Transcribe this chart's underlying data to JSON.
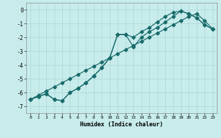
{
  "xlabel": "Humidex (Indice chaleur)",
  "ylabel": "",
  "background_color": "#c8ecec",
  "grid_color": "#b0d8d8",
  "line_color": "#1a6b6b",
  "xlim": [
    -0.5,
    23.5
  ],
  "ylim": [
    -7.5,
    0.5
  ],
  "xticks": [
    0,
    1,
    2,
    3,
    4,
    5,
    6,
    7,
    8,
    9,
    10,
    11,
    12,
    13,
    14,
    15,
    16,
    17,
    18,
    19,
    20,
    21,
    22,
    23
  ],
  "yticks": [
    0,
    -1,
    -2,
    -3,
    -4,
    -5,
    -6,
    -7
  ],
  "line1_x": [
    0,
    1,
    2,
    3,
    4,
    5,
    6,
    7,
    8,
    9,
    10,
    11,
    12,
    13,
    14,
    15,
    16,
    17,
    18,
    19,
    20,
    21,
    22,
    23
  ],
  "line1_y": [
    -6.5,
    -6.3,
    -6.1,
    -6.5,
    -6.6,
    -6.0,
    -5.7,
    -5.3,
    -4.8,
    -4.2,
    -3.5,
    -1.8,
    -1.8,
    -2.7,
    -2.0,
    -1.6,
    -1.3,
    -0.9,
    -0.5,
    -0.1,
    -0.3,
    -0.6,
    -1.1,
    -1.4
  ],
  "line2_x": [
    0,
    1,
    2,
    3,
    4,
    5,
    6,
    7,
    8,
    9,
    10,
    11,
    12,
    13,
    14,
    15,
    16,
    17,
    18,
    19,
    20,
    21,
    22,
    23
  ],
  "line2_y": [
    -6.5,
    -6.3,
    -6.1,
    -6.5,
    -6.6,
    -6.0,
    -5.7,
    -5.3,
    -4.8,
    -4.2,
    -3.5,
    -1.8,
    -1.8,
    -2.0,
    -1.6,
    -1.3,
    -0.9,
    -0.5,
    -0.2,
    -0.1,
    -0.3,
    -0.6,
    -1.1,
    -1.4
  ],
  "line3_x": [
    0,
    1,
    2,
    3,
    4,
    5,
    6,
    7,
    8,
    9,
    10,
    11,
    12,
    13,
    14,
    15,
    16,
    17,
    18,
    19,
    20,
    21,
    22,
    23
  ],
  "line3_y": [
    -6.5,
    -6.2,
    -5.9,
    -5.6,
    -5.3,
    -5.0,
    -4.7,
    -4.4,
    -4.1,
    -3.8,
    -3.5,
    -3.2,
    -2.9,
    -2.6,
    -2.3,
    -2.0,
    -1.7,
    -1.4,
    -1.1,
    -0.8,
    -0.5,
    -0.3,
    -0.8,
    -1.4
  ]
}
